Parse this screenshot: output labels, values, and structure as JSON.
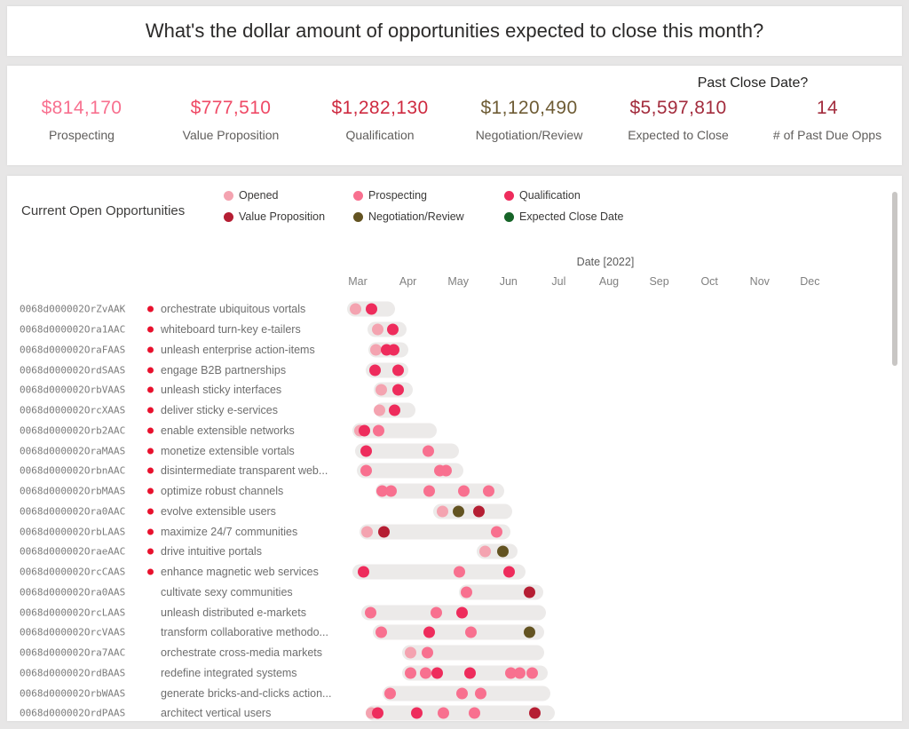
{
  "title_card": {
    "title": "What's the dollar amount of opportunities expected to close this month?"
  },
  "kpi_card": {
    "group_label": "Past Close Date?",
    "kpis": [
      {
        "value": "$814,170",
        "label": "Prospecting",
        "color": "#F8708F"
      },
      {
        "value": "$777,510",
        "label": "Value Proposition",
        "color": "#EF4A66"
      },
      {
        "value": "$1,282,130",
        "label": "Qualification",
        "color": "#CE2A40"
      },
      {
        "value": "$1,120,490",
        "label": "Negotiation/Review",
        "color": "#6E5C35"
      },
      {
        "value": "$5,597,810",
        "label": "Expected to Close",
        "color": "#A32C3D"
      },
      {
        "value": "14",
        "label": "# of Past Due Opps",
        "color": "#A32C3D"
      }
    ]
  },
  "chart_card": {
    "title": "Current Open Opportunities",
    "legend_rows": [
      [
        "opened",
        "prospecting",
        "qualification"
      ],
      [
        "value_proposition",
        "negotiation_review",
        "expected_close_date"
      ]
    ]
  },
  "chart_data": {
    "type": "timeline-dot",
    "title": "Current Open Opportunities",
    "x_axis": {
      "title": "Date [2022]",
      "months": [
        "Mar",
        "Apr",
        "May",
        "Jun",
        "Jul",
        "Aug",
        "Sep",
        "Oct",
        "Nov",
        "Dec"
      ],
      "unit": "months since Mar 1 2022"
    },
    "stages": {
      "opened": {
        "label": "Opened",
        "color": "#F4A3B0"
      },
      "prospecting": {
        "label": "Prospecting",
        "color": "#F8708F"
      },
      "qualification": {
        "label": "Qualification",
        "color": "#EE2C5C"
      },
      "value_proposition": {
        "label": "Value Proposition",
        "color": "#B51E33"
      },
      "negotiation_review": {
        "label": "Negotiation/Review",
        "color": "#635321"
      },
      "expected_close_date": {
        "label": "Expected Close Date",
        "color": "#166428"
      }
    },
    "past_due_marker_color": "#E8112D",
    "range_bar_color": "#ECEAE9",
    "rows": [
      {
        "id": "0068d000002OrZvAAK",
        "name": "orchestrate ubiquitous vortals",
        "past_due": true,
        "bar": [
          -0.21,
          0.74
        ],
        "dots": [
          [
            -0.05,
            "opened"
          ],
          [
            0.27,
            "qualification"
          ]
        ]
      },
      {
        "id": "0068d000002Ora1AAC",
        "name": "whiteboard turn-key e-tailers",
        "past_due": true,
        "bar": [
          0.19,
          0.97
        ],
        "dots": [
          [
            0.39,
            "opened"
          ],
          [
            0.69,
            "qualification"
          ]
        ]
      },
      {
        "id": "0068d000002OraFAAS",
        "name": "unleash enterprise action-items",
        "past_due": true,
        "bar": [
          0.21,
          1.01
        ],
        "dots": [
          [
            0.37,
            "opened"
          ],
          [
            0.57,
            "qualification"
          ],
          [
            0.72,
            "qualification"
          ]
        ]
      },
      {
        "id": "0068d000002OrdSAAS",
        "name": "engage B2B partnerships",
        "past_due": true,
        "bar": [
          0.16,
          1.01
        ],
        "dots": [
          [
            0.34,
            "qualification"
          ],
          [
            0.8,
            "qualification"
          ]
        ]
      },
      {
        "id": "0068d000002OrbVAAS",
        "name": "unleash sticky interfaces",
        "past_due": true,
        "bar": [
          0.32,
          1.1
        ],
        "dots": [
          [
            0.46,
            "opened"
          ],
          [
            0.8,
            "qualification"
          ]
        ]
      },
      {
        "id": "0068d000002OrcXAAS",
        "name": "deliver sticky e-services",
        "past_due": true,
        "bar": [
          0.34,
          1.15
        ],
        "dots": [
          [
            0.44,
            "opened"
          ],
          [
            0.74,
            "qualification"
          ]
        ]
      },
      {
        "id": "0068d000002Orb2AAC",
        "name": "enable extensible networks",
        "past_due": true,
        "bar": [
          -0.11,
          1.57
        ],
        "dots": [
          [
            0.04,
            "opened"
          ],
          [
            0.14,
            "qualification"
          ],
          [
            0.41,
            "prospecting"
          ]
        ]
      },
      {
        "id": "0068d000002OraMAAS",
        "name": "monetize extensible vortals",
        "past_due": true,
        "bar": [
          -0.05,
          2.01
        ],
        "dots": [
          [
            0.16,
            "qualification"
          ],
          [
            1.41,
            "prospecting"
          ]
        ]
      },
      {
        "id": "0068d000002OrbnAAC",
        "name": "disintermediate transparent web...",
        "past_due": true,
        "bar": [
          -0.02,
          2.1
        ],
        "dots": [
          [
            0.16,
            "prospecting"
          ],
          [
            1.63,
            "prospecting"
          ],
          [
            1.76,
            "prospecting"
          ]
        ]
      },
      {
        "id": "0068d000002OrbMAAS",
        "name": "optimize robust channels",
        "past_due": true,
        "bar": [
          0.35,
          2.92
        ],
        "dots": [
          [
            0.49,
            "prospecting"
          ],
          [
            0.67,
            "prospecting"
          ],
          [
            1.43,
            "prospecting"
          ],
          [
            2.12,
            "prospecting"
          ],
          [
            2.6,
            "prospecting"
          ]
        ]
      },
      {
        "id": "0068d000002Ora0AAC",
        "name": "evolve extensible users",
        "past_due": true,
        "bar": [
          1.5,
          3.07
        ],
        "dots": [
          [
            1.68,
            "opened"
          ],
          [
            2.01,
            "negotiation_review"
          ],
          [
            2.42,
            "value_proposition"
          ]
        ]
      },
      {
        "id": "0068d000002OrbLAAS",
        "name": "maximize 24/7 communities",
        "past_due": true,
        "bar": [
          0.04,
          3.04
        ],
        "dots": [
          [
            0.18,
            "opened"
          ],
          [
            0.53,
            "value_proposition"
          ],
          [
            2.77,
            "prospecting"
          ]
        ]
      },
      {
        "id": "0068d000002OraeAAC",
        "name": "drive intuitive portals",
        "past_due": true,
        "bar": [
          2.37,
          3.18
        ],
        "dots": [
          [
            2.54,
            "opened"
          ],
          [
            2.88,
            "negotiation_review"
          ]
        ]
      },
      {
        "id": "0068d000002OrcCAAS",
        "name": "enhance magnetic web services",
        "past_due": true,
        "bar": [
          -0.11,
          3.34
        ],
        "dots": [
          [
            0.11,
            "qualification"
          ],
          [
            2.03,
            "prospecting"
          ],
          [
            3.02,
            "qualification"
          ]
        ]
      },
      {
        "id": "0068d000002Ora0AAS",
        "name": "cultivate sexy communities",
        "past_due": false,
        "bar": [
          2.01,
          3.69
        ],
        "dots": [
          [
            2.17,
            "prospecting"
          ],
          [
            3.41,
            "value_proposition"
          ]
        ]
      },
      {
        "id": "0068d000002OrcLAAS",
        "name": "unleash distributed e-markets",
        "past_due": false,
        "bar": [
          0.07,
          3.75
        ],
        "dots": [
          [
            0.25,
            "prospecting"
          ],
          [
            1.57,
            "prospecting"
          ],
          [
            2.08,
            "qualification"
          ]
        ]
      },
      {
        "id": "0068d000002OrcVAAS",
        "name": "transform collaborative methodo...",
        "past_due": false,
        "bar": [
          0.3,
          3.71
        ],
        "dots": [
          [
            0.46,
            "prospecting"
          ],
          [
            1.43,
            "qualification"
          ],
          [
            2.26,
            "prospecting"
          ],
          [
            3.41,
            "negotiation_review"
          ]
        ]
      },
      {
        "id": "0068d000002Ora7AAC",
        "name": "orchestrate cross-media markets",
        "past_due": false,
        "bar": [
          0.88,
          3.71
        ],
        "dots": [
          [
            1.06,
            "opened"
          ],
          [
            1.38,
            "prospecting"
          ]
        ]
      },
      {
        "id": "0068d000002OrdBAAS",
        "name": "redefine integrated systems",
        "past_due": false,
        "bar": [
          0.88,
          3.78
        ],
        "dots": [
          [
            1.06,
            "prospecting"
          ],
          [
            1.36,
            "prospecting"
          ],
          [
            1.59,
            "qualification"
          ],
          [
            2.24,
            "qualification"
          ],
          [
            3.04,
            "prospecting"
          ],
          [
            3.22,
            "prospecting"
          ],
          [
            3.48,
            "prospecting"
          ]
        ]
      },
      {
        "id": "0068d000002OrbWAAS",
        "name": "generate bricks-and-clicks action...",
        "past_due": false,
        "bar": [
          0.49,
          3.83
        ],
        "dots": [
          [
            0.65,
            "prospecting"
          ],
          [
            2.07,
            "prospecting"
          ],
          [
            2.44,
            "prospecting"
          ]
        ]
      },
      {
        "id": "0068d000002OrdPAAS",
        "name": "architect vertical users",
        "past_due": false,
        "bar": [
          0.16,
          3.92
        ],
        "dots": [
          [
            0.27,
            "opened"
          ],
          [
            0.39,
            "qualification"
          ],
          [
            1.18,
            "qualification"
          ],
          [
            1.71,
            "prospecting"
          ],
          [
            2.33,
            "prospecting"
          ],
          [
            3.53,
            "value_proposition"
          ]
        ]
      }
    ]
  }
}
